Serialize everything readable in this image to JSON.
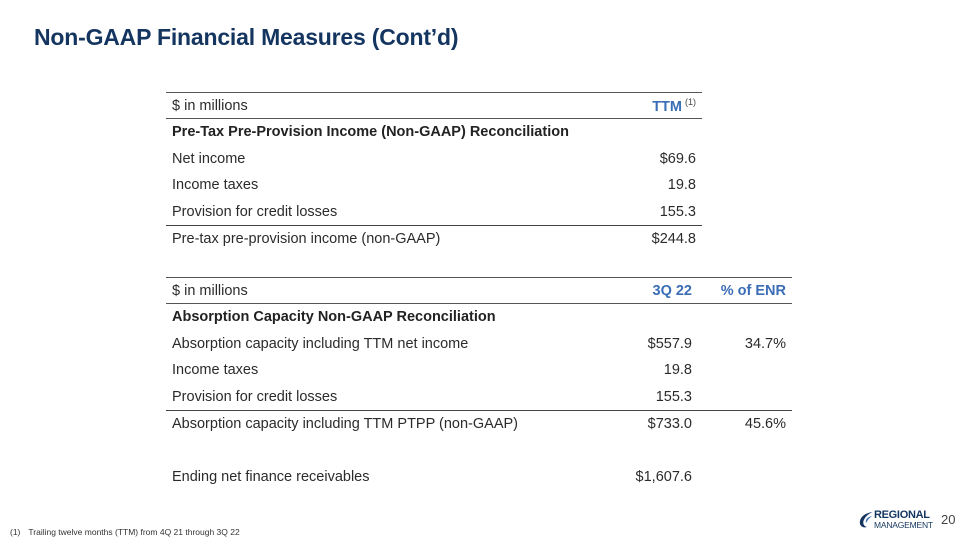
{
  "title": "Non-GAAP Financial Measures (Cont’d)",
  "table1": {
    "unit_label": "$ in millions",
    "col1": "TTM",
    "col1_footnote": "(1)",
    "section": "Pre-Tax Pre-Provision Income (Non-GAAP) Reconciliation",
    "rows": [
      {
        "label": "Net income",
        "value": "$69.6"
      },
      {
        "label": "Income taxes",
        "value": "19.8"
      },
      {
        "label": "Provision for credit losses",
        "value": "155.3"
      }
    ],
    "total": {
      "label": "Pre-tax pre-provision income (non-GAAP)",
      "value": "$244.8"
    }
  },
  "table2": {
    "unit_label": "$ in millions",
    "col1": "3Q 22",
    "col2": "% of ENR",
    "section": "Absorption Capacity Non-GAAP Reconciliation",
    "rows": [
      {
        "label": "Absorption capacity including TTM net income",
        "value": "$557.9",
        "pct": "34.7%"
      },
      {
        "label": "Income taxes",
        "value": "19.8",
        "pct": ""
      },
      {
        "label": "Provision for credit losses",
        "value": "155.3",
        "pct": ""
      }
    ],
    "total": {
      "label": "Absorption capacity including TTM PTPP (non-GAAP)",
      "value": "$733.0",
      "pct": "45.6%"
    },
    "enr": {
      "label": "Ending net finance receivables",
      "value": "$1,607.6"
    }
  },
  "footnote": {
    "mark": "(1)",
    "text": "Trailing twelve months (TTM) from 4Q 21 through 3Q 22"
  },
  "logo": {
    "line1": "REGIONAL",
    "line2": "MANAGEMENT",
    "icon": "swoosh-icon",
    "color": "#14355f"
  },
  "page_number": "20"
}
